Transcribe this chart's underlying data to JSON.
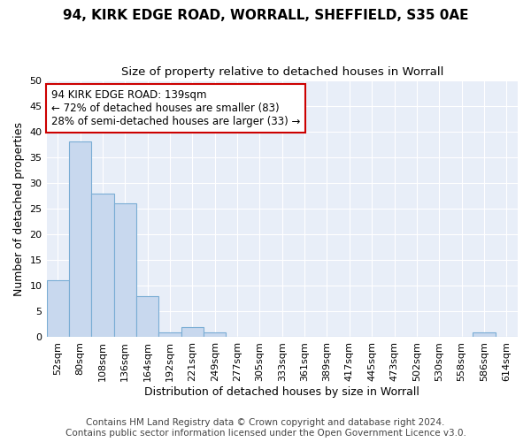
{
  "title": "94, KIRK EDGE ROAD, WORRALL, SHEFFIELD, S35 0AE",
  "subtitle": "Size of property relative to detached houses in Worrall",
  "xlabel": "Distribution of detached houses by size in Worrall",
  "ylabel": "Number of detached properties",
  "categories": [
    "52sqm",
    "80sqm",
    "108sqm",
    "136sqm",
    "164sqm",
    "192sqm",
    "221sqm",
    "249sqm",
    "277sqm",
    "305sqm",
    "333sqm",
    "361sqm",
    "389sqm",
    "417sqm",
    "445sqm",
    "473sqm",
    "502sqm",
    "530sqm",
    "558sqm",
    "586sqm",
    "614sqm"
  ],
  "values": [
    11,
    38,
    28,
    26,
    8,
    1,
    2,
    1,
    0,
    0,
    0,
    0,
    0,
    0,
    0,
    0,
    0,
    0,
    0,
    1,
    0
  ],
  "bar_color": "#c8d8ee",
  "bar_edge_color": "#7aadd4",
  "ylim": [
    0,
    50
  ],
  "yticks": [
    0,
    5,
    10,
    15,
    20,
    25,
    30,
    35,
    40,
    45,
    50
  ],
  "annotation_line1": "94 KIRK EDGE ROAD: 139sqm",
  "annotation_line2": "← 72% of detached houses are smaller (83)",
  "annotation_line3": "28% of semi-detached houses are larger (33) →",
  "annotation_box_color": "#ffffff",
  "annotation_box_edge_color": "#cc0000",
  "footer_line1": "Contains HM Land Registry data © Crown copyright and database right 2024.",
  "footer_line2": "Contains public sector information licensed under the Open Government Licence v3.0.",
  "background_color": "#ffffff",
  "plot_bg_color": "#e8eef8",
  "grid_color": "#ffffff",
  "title_fontsize": 11,
  "subtitle_fontsize": 9.5,
  "axis_label_fontsize": 9,
  "tick_fontsize": 8,
  "annotation_fontsize": 8.5,
  "footer_fontsize": 7.5
}
